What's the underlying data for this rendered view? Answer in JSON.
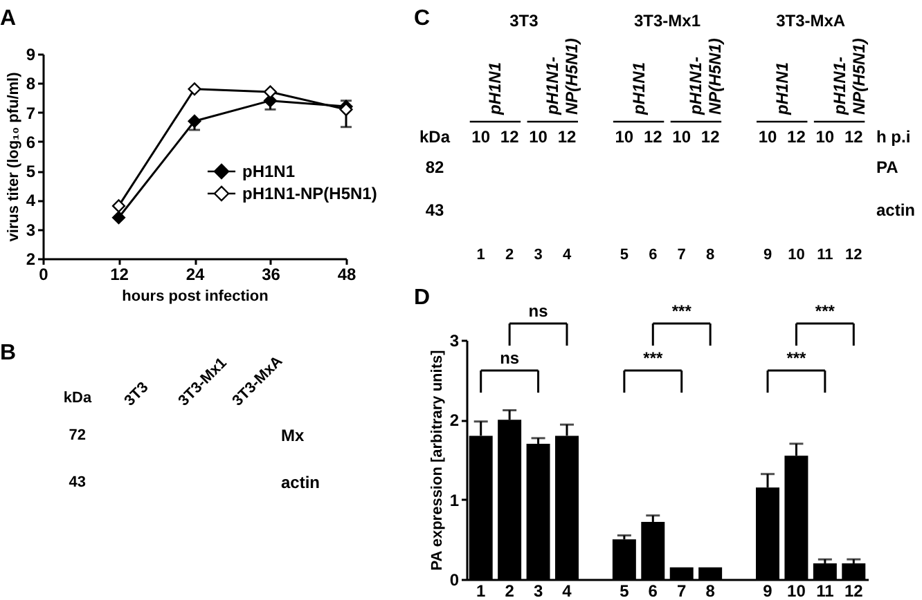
{
  "chart_data": [
    {
      "type": "line",
      "title": "A",
      "xlabel": "hours post infection",
      "ylabel": "virus titer (log₁₀ pfu/ml)",
      "x": [
        12,
        24,
        36,
        48
      ],
      "xlim": [
        0,
        48
      ],
      "xticks": [
        0,
        12,
        24,
        36,
        48
      ],
      "ylim": [
        2,
        9
      ],
      "yticks": [
        2,
        3,
        4,
        5,
        6,
        7,
        8,
        9
      ],
      "marker": "diamond",
      "legend": "bottom right",
      "series": [
        {
          "name": "pH1N1",
          "color": "#000000",
          "values": [
            3.4,
            6.7,
            7.4,
            7.2
          ],
          "errors": [
            null,
            [
              6.4,
              6.7
            ],
            [
              7.1,
              7.4
            ],
            null
          ]
        },
        {
          "name": "pH1N1-NP(H5N1)",
          "color": "#ffffff",
          "values": [
            3.8,
            7.8,
            7.7,
            7.1
          ],
          "errors": [
            null,
            null,
            null,
            [
              6.5,
              7.4
            ]
          ]
        }
      ]
    },
    {
      "type": "other",
      "title": "B",
      "annotations": [
        "3T3",
        "3T3-Mx1",
        "3T3-MxA",
        "kDa",
        "72",
        "Mx",
        "43",
        "actin"
      ]
    },
    {
      "type": "other",
      "title": "C",
      "annotations": [
        "3T3",
        "3T3-Mx1",
        "3T3-MxA",
        "pH1N1",
        "pH1N1-NP(H5N1)",
        "pH1N1",
        "pH1N1-NP(H5N1)",
        "pH1N1",
        "pH1N1-NP(H5N1)",
        "kDa",
        "10",
        "12",
        "10",
        "12",
        "10",
        "12",
        "10",
        "12",
        "10",
        "12",
        "10",
        "12",
        "h p.i",
        "82",
        "PA",
        "43",
        "actin"
      ]
    },
    {
      "type": "bar",
      "title": "D",
      "ylabel": "PA expression [arbitrary units]",
      "categories": [
        "1",
        "2",
        "3",
        "4",
        null,
        "5",
        "6",
        "7",
        "8",
        null,
        "9",
        "10",
        "11",
        "12"
      ],
      "values": [
        1.8,
        2.0,
        1.7,
        1.8,
        null,
        0.5,
        0.72,
        0.15,
        0.15,
        null,
        1.15,
        1.55,
        0.2,
        0.2
      ],
      "color": "#000000",
      "errors": [
        [
          1.8,
          1.98
        ],
        [
          2.0,
          2.12
        ],
        [
          1.7,
          1.77
        ],
        [
          1.8,
          1.94
        ],
        null,
        [
          0.5,
          0.55
        ],
        [
          0.72,
          0.8
        ],
        null,
        null,
        null,
        [
          1.15,
          1.32
        ],
        [
          1.55,
          1.7
        ],
        [
          0.2,
          0.25
        ],
        [
          0.2,
          0.25
        ]
      ],
      "ylim": [
        0,
        3
      ],
      "yticks": [
        0,
        1,
        2,
        3
      ],
      "annotations": [
        "ns",
        "ns",
        "***",
        "***",
        "***",
        "***"
      ]
    }
  ]
}
